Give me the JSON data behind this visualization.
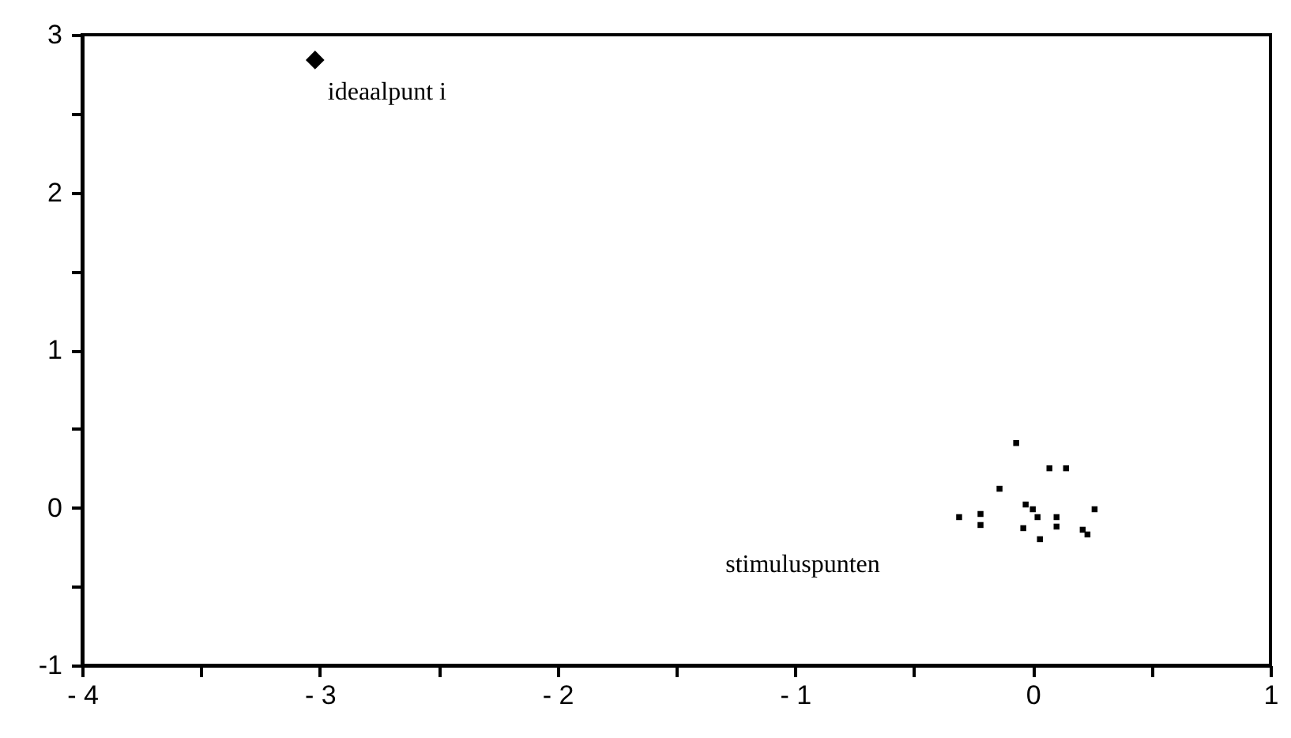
{
  "chart_data": {
    "type": "scatter",
    "series": [
      {
        "color": "#000000",
        "marker": "diamond",
        "x": [
          -3.02
        ],
        "values": [
          2.84
        ]
      },
      {
        "color": "#000000",
        "marker": "square",
        "x": [
          -0.07,
          0.07,
          0.14,
          -0.14,
          -0.31,
          -0.22,
          -0.22,
          -0.03,
          0.0,
          0.02,
          -0.04,
          0.03,
          0.1,
          0.1,
          0.21,
          0.23,
          0.26
        ],
        "values": [
          0.41,
          0.25,
          0.25,
          0.12,
          -0.06,
          -0.04,
          -0.11,
          0.02,
          -0.01,
          -0.06,
          -0.13,
          -0.2,
          -0.06,
          -0.12,
          -0.14,
          -0.17,
          -0.01
        ]
      }
    ],
    "annotations": [
      {
        "text": "ideaalpunt i",
        "x": -3.02,
        "y": 2.84
      },
      "stimuluspunten"
    ],
    "xlim": [
      -4,
      1
    ],
    "ylim": [
      -1,
      3
    ],
    "xticks": [
      {
        "value": -4,
        "label": "- 4"
      },
      {
        "value": -3.5,
        "label": null
      },
      {
        "value": -3,
        "label": "- 3"
      },
      {
        "value": -2.5,
        "label": null
      },
      {
        "value": -2,
        "label": "- 2"
      },
      {
        "value": -1.5,
        "label": null
      },
      {
        "value": -1,
        "label": "- 1"
      },
      {
        "value": -0.5,
        "label": null
      },
      0,
      {
        "value": 0.5,
        "label": null
      },
      1
    ],
    "yticks": [
      -1,
      {
        "value": -0.5,
        "label": null
      },
      0,
      {
        "value": 0.5,
        "label": null
      },
      1,
      {
        "value": 1.5,
        "label": null
      },
      2,
      {
        "value": 2.5,
        "label": null
      },
      3
    ],
    "grid": false
  }
}
